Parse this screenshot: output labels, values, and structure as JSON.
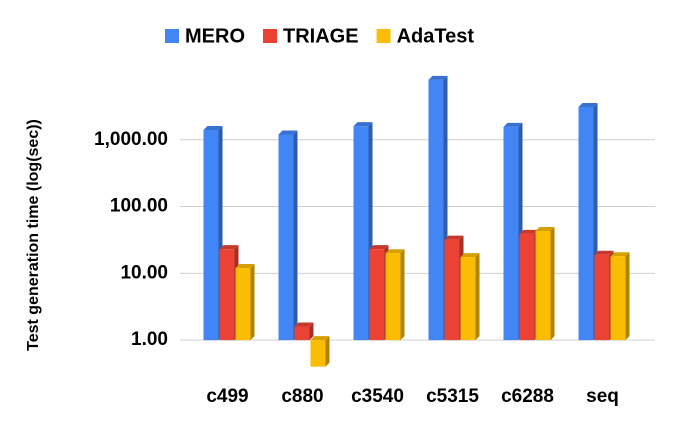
{
  "chart_data": {
    "type": "bar",
    "y_label": "Test generation time (log(sec))",
    "categories": [
      "c499",
      "c880",
      "c3540",
      "c5315",
      "c6288",
      "seq"
    ],
    "series": [
      {
        "name": "MERO",
        "color": "#4285f4",
        "values": [
          1400,
          1200,
          1600,
          7900,
          1560,
          3100
        ]
      },
      {
        "name": "TRIAGE",
        "color": "#ea4335",
        "values": [
          23,
          1.6,
          23,
          32,
          39,
          19
        ]
      },
      {
        "name": "AdaTest",
        "color": "#fbbc04",
        "values": [
          12,
          0.4,
          20,
          17.5,
          43,
          18
        ]
      }
    ],
    "log_scale": true,
    "ylim": [
      0.3,
      10000
    ],
    "yticks": [
      {
        "value": 1,
        "label": "1.00"
      },
      {
        "value": 10,
        "label": "10.00"
      },
      {
        "value": 100,
        "label": "100.00"
      },
      {
        "value": 1000,
        "label": "1,000.00"
      }
    ],
    "grid": true,
    "legend": "top"
  }
}
